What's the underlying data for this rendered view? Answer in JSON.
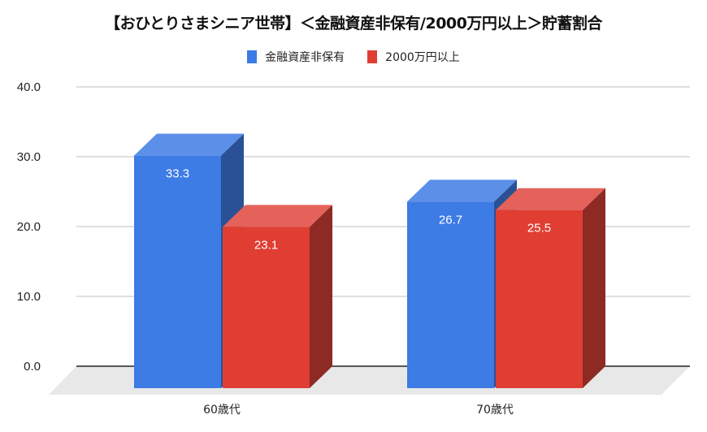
{
  "title": "【おひとりさまシニア世帯】＜金融資産非保有/2000万円以上＞貯蓄割合",
  "legend": [
    {
      "label": "金融資産非保有",
      "color": "#3D7BE5"
    },
    {
      "label": "2000万円以上",
      "color": "#E03E33"
    }
  ],
  "colors": {
    "blue_front": "#3D7BE5",
    "blue_top": "#5B8FE8",
    "blue_side": "#2A5196",
    "red_front": "#E03E33",
    "red_top": "#E4625A",
    "red_side": "#8D2A24",
    "floor": "#E8E8E8",
    "grid": "#CCCCCC",
    "axis": "#222222"
  },
  "chart_data": {
    "type": "bar",
    "title": "【おひとりさまシニア世帯】＜金融資産非保有/2000万円以上＞貯蓄割合",
    "categories": [
      "60歳代",
      "70歳代"
    ],
    "series": [
      {
        "name": "金融資産非保有",
        "values": [
          33.3,
          26.7
        ]
      },
      {
        "name": "2000万円以上",
        "values": [
          23.1,
          25.5
        ]
      }
    ],
    "xlabel": "",
    "ylabel": "",
    "ylim": [
      0,
      40
    ],
    "yticks": [
      "0.0",
      "10.0",
      "20.0",
      "30.0",
      "40.0"
    ],
    "grid": true,
    "legend_position": "top",
    "style": "3d-column",
    "data_labels": [
      "33.3",
      "23.1",
      "26.7",
      "25.5"
    ]
  }
}
